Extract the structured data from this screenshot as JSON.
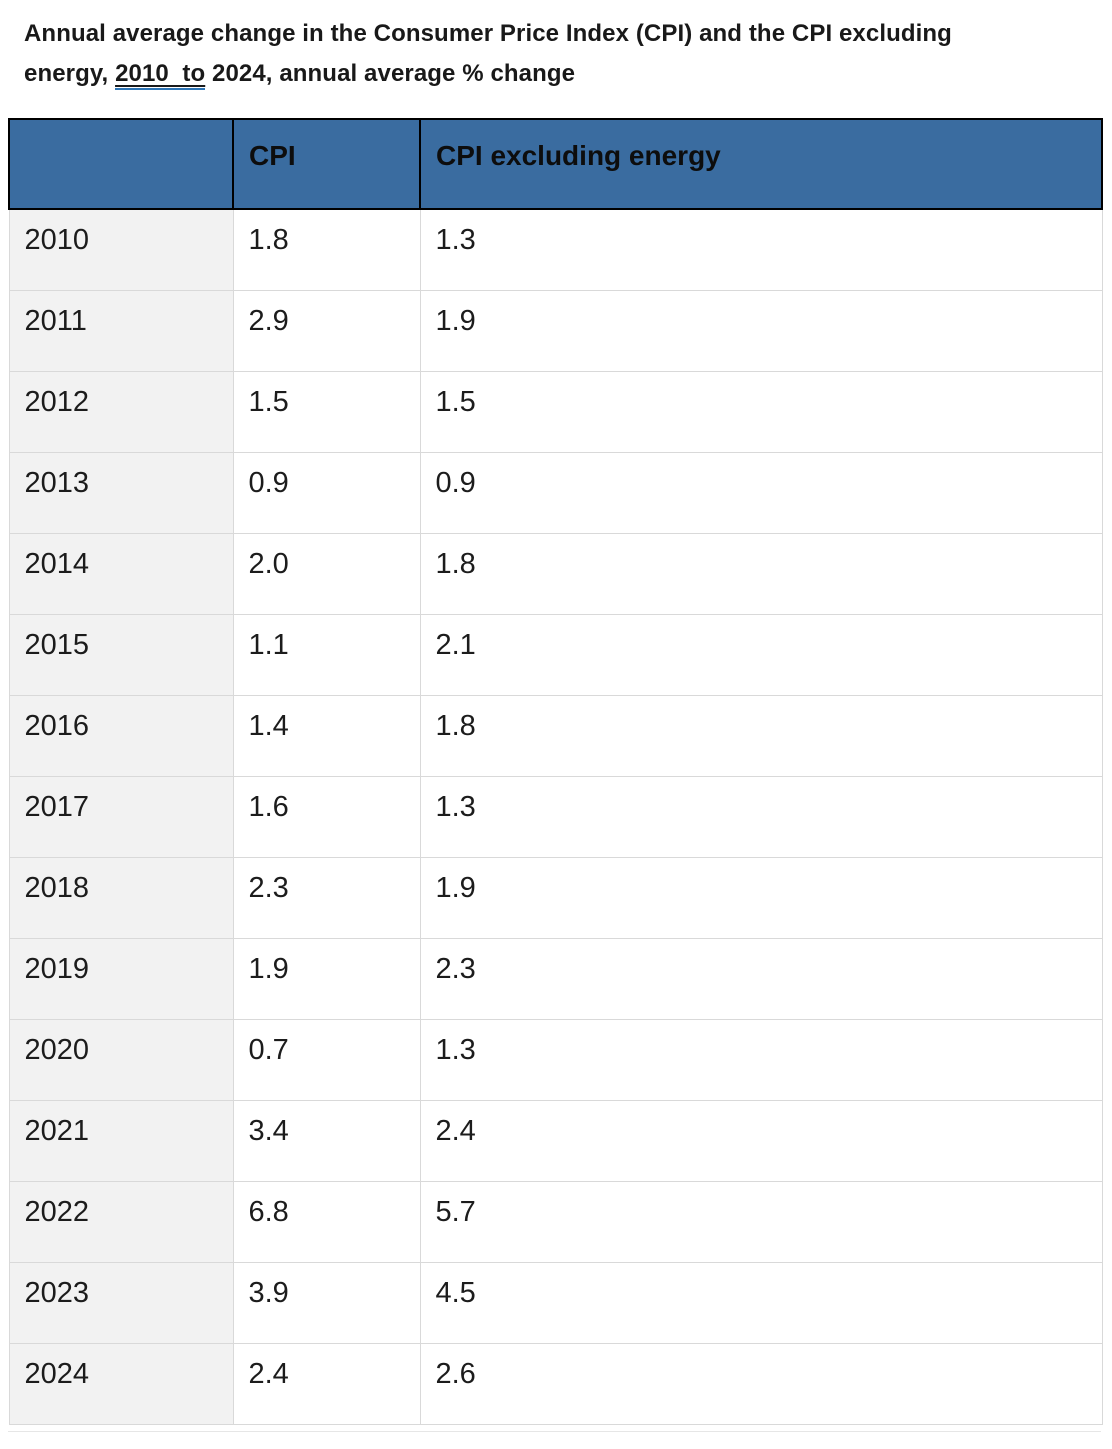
{
  "title": {
    "line1": "Annual average change in the Consumer Price Index (CPI) and the CPI excluding",
    "line2_pre": "energy, ",
    "line2_link": "2010  to",
    "line2_post": " 2024, annual average % change"
  },
  "table": {
    "headers": [
      "",
      "CPI",
      "CPI excluding energy"
    ],
    "rows": [
      {
        "year": "2010",
        "cpi": "1.8",
        "cpi_excl": "1.3"
      },
      {
        "year": "2011",
        "cpi": "2.9",
        "cpi_excl": "1.9"
      },
      {
        "year": "2012",
        "cpi": "1.5",
        "cpi_excl": "1.5"
      },
      {
        "year": "2013",
        "cpi": "0.9",
        "cpi_excl": "0.9"
      },
      {
        "year": "2014",
        "cpi": "2.0",
        "cpi_excl": "1.8"
      },
      {
        "year": "2015",
        "cpi": "1.1",
        "cpi_excl": "2.1"
      },
      {
        "year": "2016",
        "cpi": "1.4",
        "cpi_excl": "1.8"
      },
      {
        "year": "2017",
        "cpi": "1.6",
        "cpi_excl": "1.3"
      },
      {
        "year": "2018",
        "cpi": "2.3",
        "cpi_excl": "1.9"
      },
      {
        "year": "2019",
        "cpi": "1.9",
        "cpi_excl": "2.3"
      },
      {
        "year": "2020",
        "cpi": "0.7",
        "cpi_excl": "1.3"
      },
      {
        "year": "2021",
        "cpi": "3.4",
        "cpi_excl": "2.4"
      },
      {
        "year": "2022",
        "cpi": "6.8",
        "cpi_excl": "5.7"
      },
      {
        "year": "2023",
        "cpi": "3.9",
        "cpi_excl": "4.5"
      },
      {
        "year": "2024",
        "cpi": "2.4",
        "cpi_excl": "2.6"
      }
    ]
  },
  "chart_data": {
    "type": "table",
    "title": "Annual average change in the Consumer Price Index (CPI) and the CPI excluding energy, 2010 to 2024, annual average % change",
    "categories": [
      2010,
      2011,
      2012,
      2013,
      2014,
      2015,
      2016,
      2017,
      2018,
      2019,
      2020,
      2021,
      2022,
      2023,
      2024
    ],
    "series": [
      {
        "name": "CPI",
        "values": [
          1.8,
          2.9,
          1.5,
          0.9,
          2.0,
          1.1,
          1.4,
          1.6,
          2.3,
          1.9,
          0.7,
          3.4,
          6.8,
          3.9,
          2.4
        ]
      },
      {
        "name": "CPI excluding energy",
        "values": [
          1.3,
          1.9,
          1.5,
          0.9,
          1.8,
          2.1,
          1.8,
          1.3,
          1.9,
          2.3,
          1.3,
          2.4,
          5.7,
          4.5,
          2.6
        ]
      }
    ],
    "ylabel": "annual average % change",
    "legend_position": "header-row",
    "grid": true
  },
  "colors": {
    "header_bg": "#3A6CA0",
    "label_column_bg": "#F2F2F2",
    "grid_border": "#D9D9D9",
    "header_border": "#000000",
    "link_underline": "#2E75B6",
    "text": "#1B1B1B"
  }
}
